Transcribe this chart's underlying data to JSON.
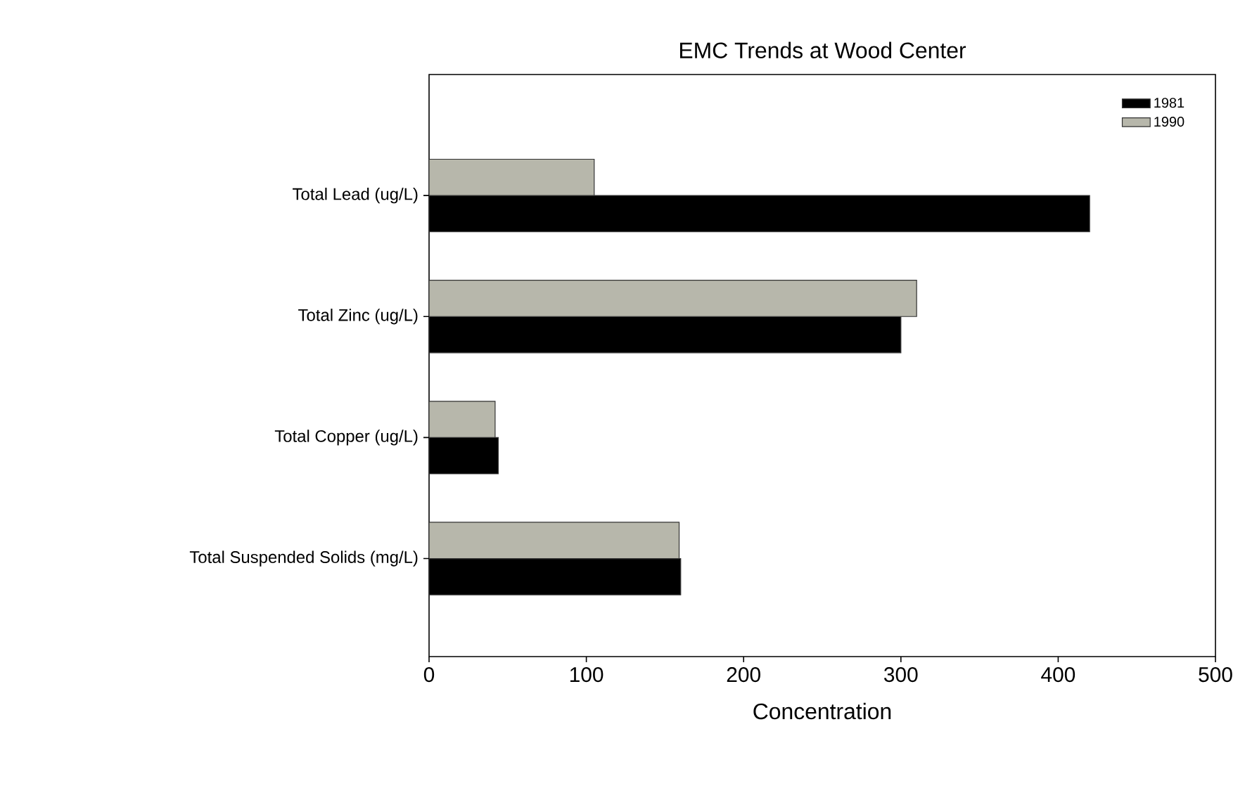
{
  "chart_data": {
    "type": "bar",
    "orientation": "horizontal",
    "title": "EMC Trends at Wood Center",
    "xlabel": "Concentration",
    "categories": [
      "Total Lead (ug/L)",
      "Total Zinc (ug/L)",
      "Total Copper (ug/L)",
      "Total Suspended Solids (mg/L)"
    ],
    "series": [
      {
        "name": "1981",
        "color": "#000000",
        "values": [
          420,
          300,
          44,
          160
        ]
      },
      {
        "name": "1990",
        "color": "#b7b7ab",
        "values": [
          105,
          310,
          42,
          159
        ]
      }
    ],
    "xlim": [
      0,
      500
    ],
    "xticks": [
      0,
      100,
      200,
      300,
      400,
      500
    ],
    "grid": false,
    "legend": "top right"
  }
}
